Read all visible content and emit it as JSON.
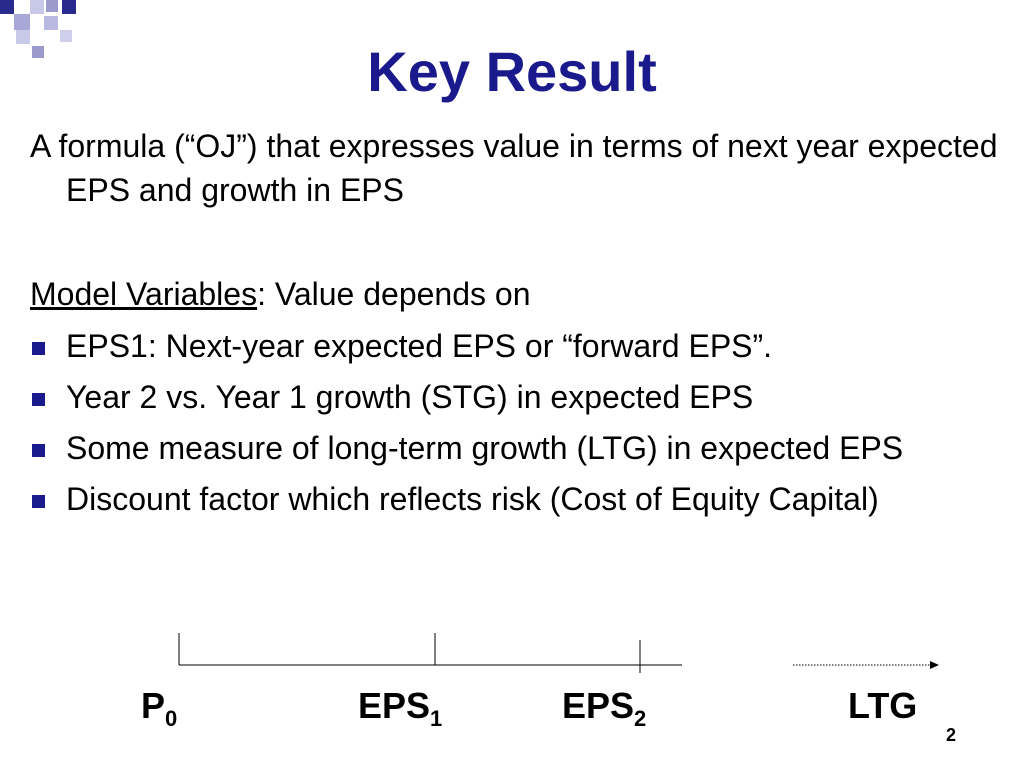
{
  "slide": {
    "title": "Key Result",
    "intro": "A formula (“OJ”) that expresses value in terms of next year expected EPS and growth in EPS",
    "model_variables": {
      "label": "Model Variables",
      "rest": ": Value depends on"
    },
    "bullets": [
      "EPS1: Next-year expected EPS or “forward EPS”.",
      "Year 2 vs. Year 1 growth (STG) in expected EPS",
      "Some measure of long-term growth (LTG) in expected EPS",
      "Discount factor which reflects risk (Cost of Equity Capital)"
    ],
    "timeline": {
      "p0": {
        "base": "P",
        "sub": "0"
      },
      "eps1": {
        "base": "EPS",
        "sub": "1"
      },
      "eps2": {
        "base": "EPS",
        "sub": "2"
      },
      "ltg": "LTG"
    },
    "page_number": "2",
    "colors": {
      "title": "#1a1a8c",
      "bullet": "#1a1a8c",
      "deco_dark": "#2a2a8c",
      "deco_light": "#9999cc"
    }
  }
}
